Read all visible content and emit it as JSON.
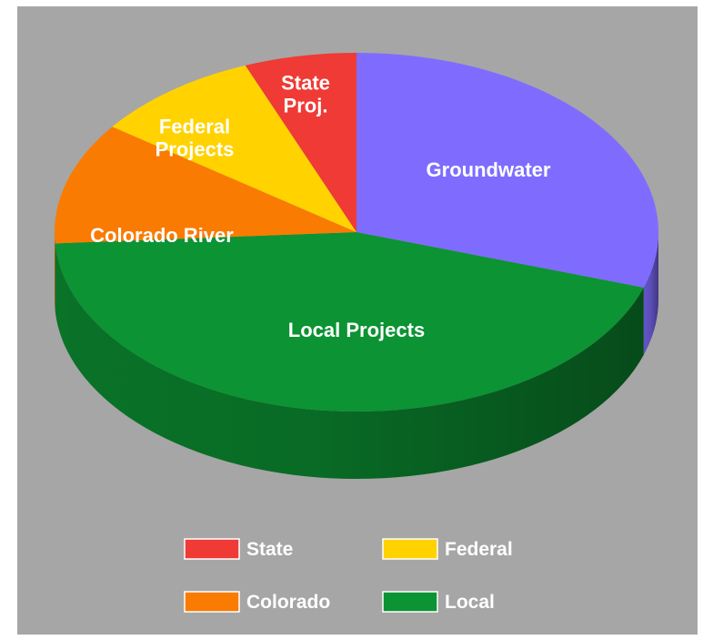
{
  "chart_data": {
    "type": "pie",
    "style": "3d",
    "title": "",
    "background": "#a6a6a6",
    "slices": [
      {
        "key": "groundwater",
        "label": "Groundwater",
        "value": 30,
        "color": "#7f6cff"
      },
      {
        "key": "local",
        "label": "Local Projects",
        "value": 44,
        "color": "#0c9333"
      },
      {
        "key": "colorado",
        "label": "Colorado River",
        "value": 11,
        "color": "#f97b02"
      },
      {
        "key": "federal",
        "label": "Federal Projects",
        "label_lines": [
          "Federal",
          "Projects"
        ],
        "value": 9,
        "color": "#ffd200"
      },
      {
        "key": "state",
        "label": "State Proj.",
        "label_lines": [
          "State",
          "Proj."
        ],
        "value": 6,
        "color": "#ef3a36"
      }
    ],
    "legend": {
      "placement": "bottom",
      "items": [
        {
          "key": "state",
          "label": "State",
          "color": "#ef3a36"
        },
        {
          "key": "federal",
          "label": "Federal",
          "color": "#ffd200"
        },
        {
          "key": "colorado",
          "label": "Colorado",
          "color": "#f97b02"
        },
        {
          "key": "local",
          "label": "Local",
          "color": "#0c9333"
        }
      ]
    }
  }
}
